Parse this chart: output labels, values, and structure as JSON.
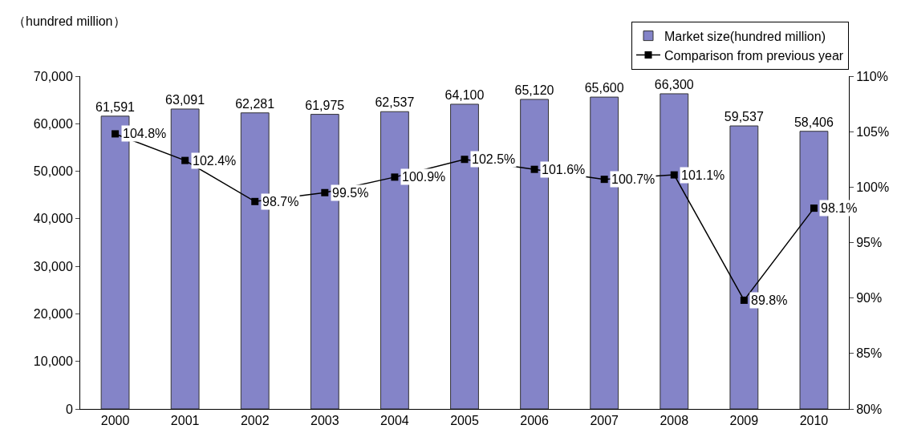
{
  "chart_data": {
    "type": "bar",
    "ylabel": "（hundred million）",
    "categories": [
      "2000",
      "2001",
      "2002",
      "2003",
      "2004",
      "2005",
      "2006",
      "2007",
      "2008",
      "2009",
      "2010"
    ],
    "series": [
      {
        "name": "Market size(hundred million)",
        "color": "#8484c8",
        "values": [
          61591,
          63091,
          62281,
          61975,
          62537,
          64100,
          65120,
          65600,
          66300,
          59537,
          58406
        ],
        "value_labels": [
          "61,591",
          "63,091",
          "62,281",
          "61,975",
          "62,537",
          "64,100",
          "65,120",
          "65,600",
          "66,300",
          "59,537",
          "58,406"
        ]
      },
      {
        "name": "Comparison from previous year",
        "type": "line",
        "axis": "y2",
        "color": "#000000",
        "marker": "square",
        "values": [
          104.8,
          102.4,
          98.7,
          99.5,
          100.9,
          102.5,
          101.6,
          100.7,
          101.1,
          89.8,
          98.1
        ],
        "value_labels": [
          "104.8%",
          "102.4%",
          "98.7%",
          "99.5%",
          "100.9%",
          "102.5%",
          "101.6%",
          "100.7%",
          "101.1%",
          "89.8%",
          "98.1%"
        ]
      }
    ],
    "ylim": [
      0,
      70000
    ],
    "yticks": [
      {
        "value": 0,
        "label": "0"
      },
      {
        "value": 10000,
        "label": "10,000"
      },
      {
        "value": 20000,
        "label": "20,000"
      },
      {
        "value": 30000,
        "label": "30,000"
      },
      {
        "value": 40000,
        "label": "40,000"
      },
      {
        "value": 50000,
        "label": "50,000"
      },
      {
        "value": 60000,
        "label": "60,000"
      },
      {
        "value": 70000,
        "label": "70,000"
      }
    ],
    "y2lim": [
      80,
      110
    ],
    "y2ticks": [
      {
        "value": 80,
        "label": "80%"
      },
      {
        "value": 85,
        "label": "85%"
      },
      {
        "value": 90,
        "label": "90%"
      },
      {
        "value": 95,
        "label": "95%"
      },
      {
        "value": 100,
        "label": "100%"
      },
      {
        "value": 105,
        "label": "105%"
      },
      {
        "value": 110,
        "label": "110%"
      }
    ],
    "grid": false,
    "legend": "top right",
    "line_style": "solid"
  }
}
